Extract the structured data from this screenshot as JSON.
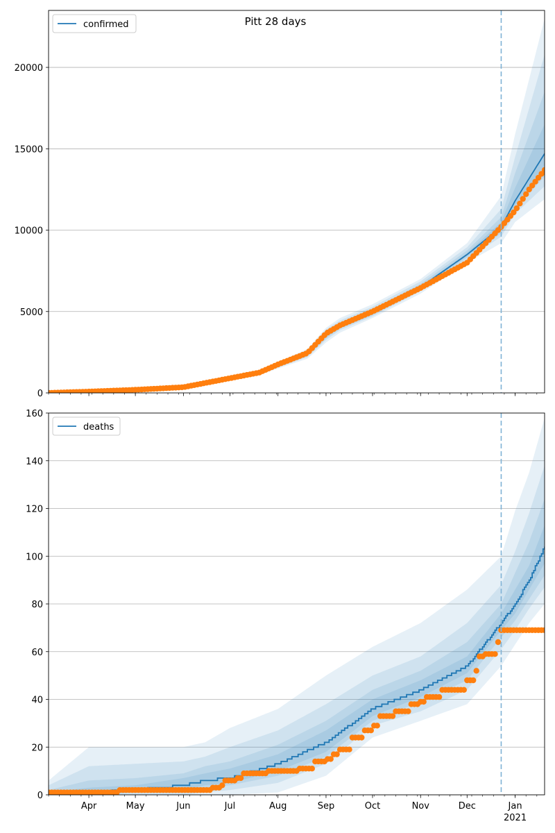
{
  "figure": {
    "title": "Pitt 28 days"
  },
  "colors": {
    "line": "#1f77b4",
    "observed": "#ff7f0e",
    "band": "#1f77b4",
    "forecast_divider": "#7fb2d5",
    "grid": "#b0b0b0"
  },
  "x_axis": {
    "month_labels": [
      {
        "date": "2020-04-01",
        "label": "Apr"
      },
      {
        "date": "2020-05-01",
        "label": "May"
      },
      {
        "date": "2020-06-01",
        "label": "Jun"
      },
      {
        "date": "2020-07-01",
        "label": "Jul"
      },
      {
        "date": "2020-08-01",
        "label": "Aug"
      },
      {
        "date": "2020-09-01",
        "label": "Sep"
      },
      {
        "date": "2020-10-01",
        "label": "Oct"
      },
      {
        "date": "2020-11-01",
        "label": "Nov"
      },
      {
        "date": "2020-12-01",
        "label": "Dec"
      },
      {
        "date": "2021-01-01",
        "label": "Jan"
      }
    ],
    "year_label": "2021",
    "range": [
      "2020-03-06",
      "2021-01-20"
    ]
  },
  "chart_data": [
    {
      "type": "line",
      "legend": "confirmed",
      "legend_position": "top-left",
      "grid": "horizontal",
      "ylim": [
        0,
        23500
      ],
      "yticks": [
        0,
        5000,
        10000,
        15000,
        20000
      ],
      "ytick_labels": [
        "0",
        "5000",
        "10000",
        "15000",
        "20000"
      ],
      "forecast_start": "2020-12-23",
      "model": {
        "dates": [
          "2020-03-06",
          "2020-04-01",
          "2020-05-01",
          "2020-06-01",
          "2020-07-01",
          "2020-07-20",
          "2020-08-01",
          "2020-08-20",
          "2020-09-01",
          "2020-09-10",
          "2020-10-01",
          "2020-11-01",
          "2020-12-01",
          "2020-12-23",
          "2021-01-01",
          "2021-01-20"
        ],
        "values": [
          0,
          80,
          180,
          350,
          870,
          1250,
          1700,
          2400,
          3600,
          4100,
          4950,
          6500,
          8500,
          10200,
          11800,
          14700
        ],
        "bands": [
          {
            "lower": [
              0,
              60,
              140,
              280,
              770,
              1100,
              1500,
              2100,
              3100,
              3700,
              4600,
              6100,
              8000,
              9200,
              10500,
              11900
            ],
            "upper": [
              0,
              100,
              220,
              420,
              970,
              1400,
              1900,
              2700,
              4000,
              4600,
              5450,
              7000,
              9200,
              12100,
              15900,
              23000
            ]
          },
          {
            "lower": [
              0,
              65,
              150,
              300,
              800,
              1150,
              1560,
              2200,
              3250,
              3850,
              4700,
              6250,
              8200,
              9600,
              11000,
              12700
            ],
            "upper": [
              0,
              95,
              210,
              400,
              940,
              1350,
              1840,
              2600,
              3900,
              4450,
              5300,
              6850,
              8950,
              11300,
              14500,
              20800
            ]
          },
          {
            "lower": [
              0,
              70,
              160,
              315,
              820,
              1180,
              1600,
              2260,
              3350,
              3950,
              4780,
              6350,
              8300,
              9800,
              11300,
              13300
            ],
            "upper": [
              0,
              90,
              200,
              385,
              920,
              1320,
              1800,
              2540,
              3800,
              4300,
              5150,
              6700,
              8750,
              10800,
              13500,
              18500
            ]
          },
          {
            "lower": [
              0,
              75,
              170,
              330,
              845,
              1215,
              1650,
              2330,
              3480,
              4030,
              4870,
              6430,
              8400,
              10000,
              11550,
              14000
            ],
            "upper": [
              0,
              85,
              190,
              370,
              895,
              1285,
              1750,
              2470,
              3700,
              4180,
              5050,
              6580,
              8600,
              10500,
              12600,
              16500
            ]
          }
        ]
      },
      "observed": {
        "dates": [
          "2020-03-06",
          "2020-04-01",
          "2020-05-01",
          "2020-06-01",
          "2020-07-01",
          "2020-07-20",
          "2020-08-01",
          "2020-08-20",
          "2020-09-01",
          "2020-09-10",
          "2020-10-01",
          "2020-11-01",
          "2020-12-01",
          "2020-12-15",
          "2020-12-23",
          "2021-01-01",
          "2021-01-10",
          "2021-01-20"
        ],
        "values": [
          0,
          80,
          190,
          350,
          900,
          1250,
          1750,
          2450,
          3650,
          4150,
          5000,
          6450,
          8000,
          9400,
          10200,
          11200,
          12500,
          13700
        ]
      }
    },
    {
      "type": "line",
      "legend": "deaths",
      "legend_position": "top-left",
      "grid": "horizontal",
      "ylim": [
        0,
        160
      ],
      "yticks": [
        0,
        20,
        40,
        60,
        80,
        100,
        120,
        140,
        160
      ],
      "ytick_labels": [
        "0",
        "20",
        "40",
        "60",
        "80",
        "100",
        "120",
        "140",
        "160"
      ],
      "forecast_start": "2020-12-23",
      "model": {
        "dates": [
          "2020-03-06",
          "2020-04-01",
          "2020-05-01",
          "2020-06-01",
          "2020-06-15",
          "2020-07-01",
          "2020-08-01",
          "2020-09-01",
          "2020-10-01",
          "2020-11-01",
          "2020-12-01",
          "2020-12-23",
          "2021-01-01",
          "2021-01-10",
          "2021-01-20"
        ],
        "values": [
          0,
          1,
          2,
          4,
          6,
          7,
          13,
          22,
          36,
          44,
          54,
          72,
          80,
          90,
          104
        ],
        "bands": [
          {
            "lower": [
              0,
              0,
              0,
              0,
              0,
              0,
              1,
              8,
              24,
              31,
              38,
              54,
              63,
              72,
              80
            ],
            "upper": [
              6,
              20,
              20,
              20,
              22,
              28,
              36,
              50,
              62,
              72,
              86,
              100,
              119,
              135,
              158
            ]
          },
          {
            "lower": [
              0,
              0,
              0,
              0,
              1,
              2,
              5,
              13,
              29,
              35,
              44,
              61,
              69,
              78,
              87
            ],
            "upper": [
              4,
              12,
              13,
              14,
              16,
              20,
              27,
              38,
              50,
              58,
              72,
              88,
              102,
              118,
              138
            ]
          },
          {
            "lower": [
              0,
              0,
              1,
              1,
              3,
              4,
              8,
              16,
              31,
              39,
              48,
              66,
              73,
              82,
              92
            ],
            "upper": [
              2,
              6,
              7,
              9,
              12,
              14,
              21,
              31,
              44,
              52,
              64,
              80,
              93,
              106,
              124
            ]
          },
          {
            "lower": [
              0,
              0,
              1,
              2,
              4,
              5,
              10,
              18,
              33,
              41,
              51,
              69,
              76,
              86,
              97
            ],
            "upper": [
              1,
              3,
              4,
              7,
              9,
              11,
              17,
              27,
              40,
              48,
              58,
              76,
              86,
              96,
              113
            ]
          }
        ]
      },
      "observed": {
        "steps": [
          [
            "2020-03-06",
            1
          ],
          [
            "2020-04-05",
            1
          ],
          [
            "2020-04-20",
            2
          ],
          [
            "2020-06-20",
            3
          ],
          [
            "2020-06-25",
            4
          ],
          [
            "2020-06-28",
            6
          ],
          [
            "2020-07-05",
            7
          ],
          [
            "2020-07-10",
            9
          ],
          [
            "2020-07-25",
            10
          ],
          [
            "2020-08-15",
            11
          ],
          [
            "2020-08-25",
            14
          ],
          [
            "2020-09-01",
            15
          ],
          [
            "2020-09-05",
            17
          ],
          [
            "2020-09-10",
            19
          ],
          [
            "2020-09-18",
            24
          ],
          [
            "2020-09-25",
            27
          ],
          [
            "2020-10-01",
            29
          ],
          [
            "2020-10-05",
            33
          ],
          [
            "2020-10-15",
            35
          ],
          [
            "2020-10-25",
            38
          ],
          [
            "2020-11-01",
            39
          ],
          [
            "2020-11-05",
            41
          ],
          [
            "2020-11-15",
            44
          ],
          [
            "2020-11-25",
            44
          ],
          [
            "2020-12-01",
            48
          ],
          [
            "2020-12-05",
            48
          ],
          [
            "2020-12-07",
            52
          ],
          [
            "2020-12-09",
            58
          ],
          [
            "2020-12-12",
            59
          ],
          [
            "2020-12-18",
            59
          ],
          [
            "2020-12-20",
            64
          ],
          [
            "2020-12-22",
            69
          ],
          [
            "2021-01-20",
            69
          ]
        ]
      }
    }
  ]
}
